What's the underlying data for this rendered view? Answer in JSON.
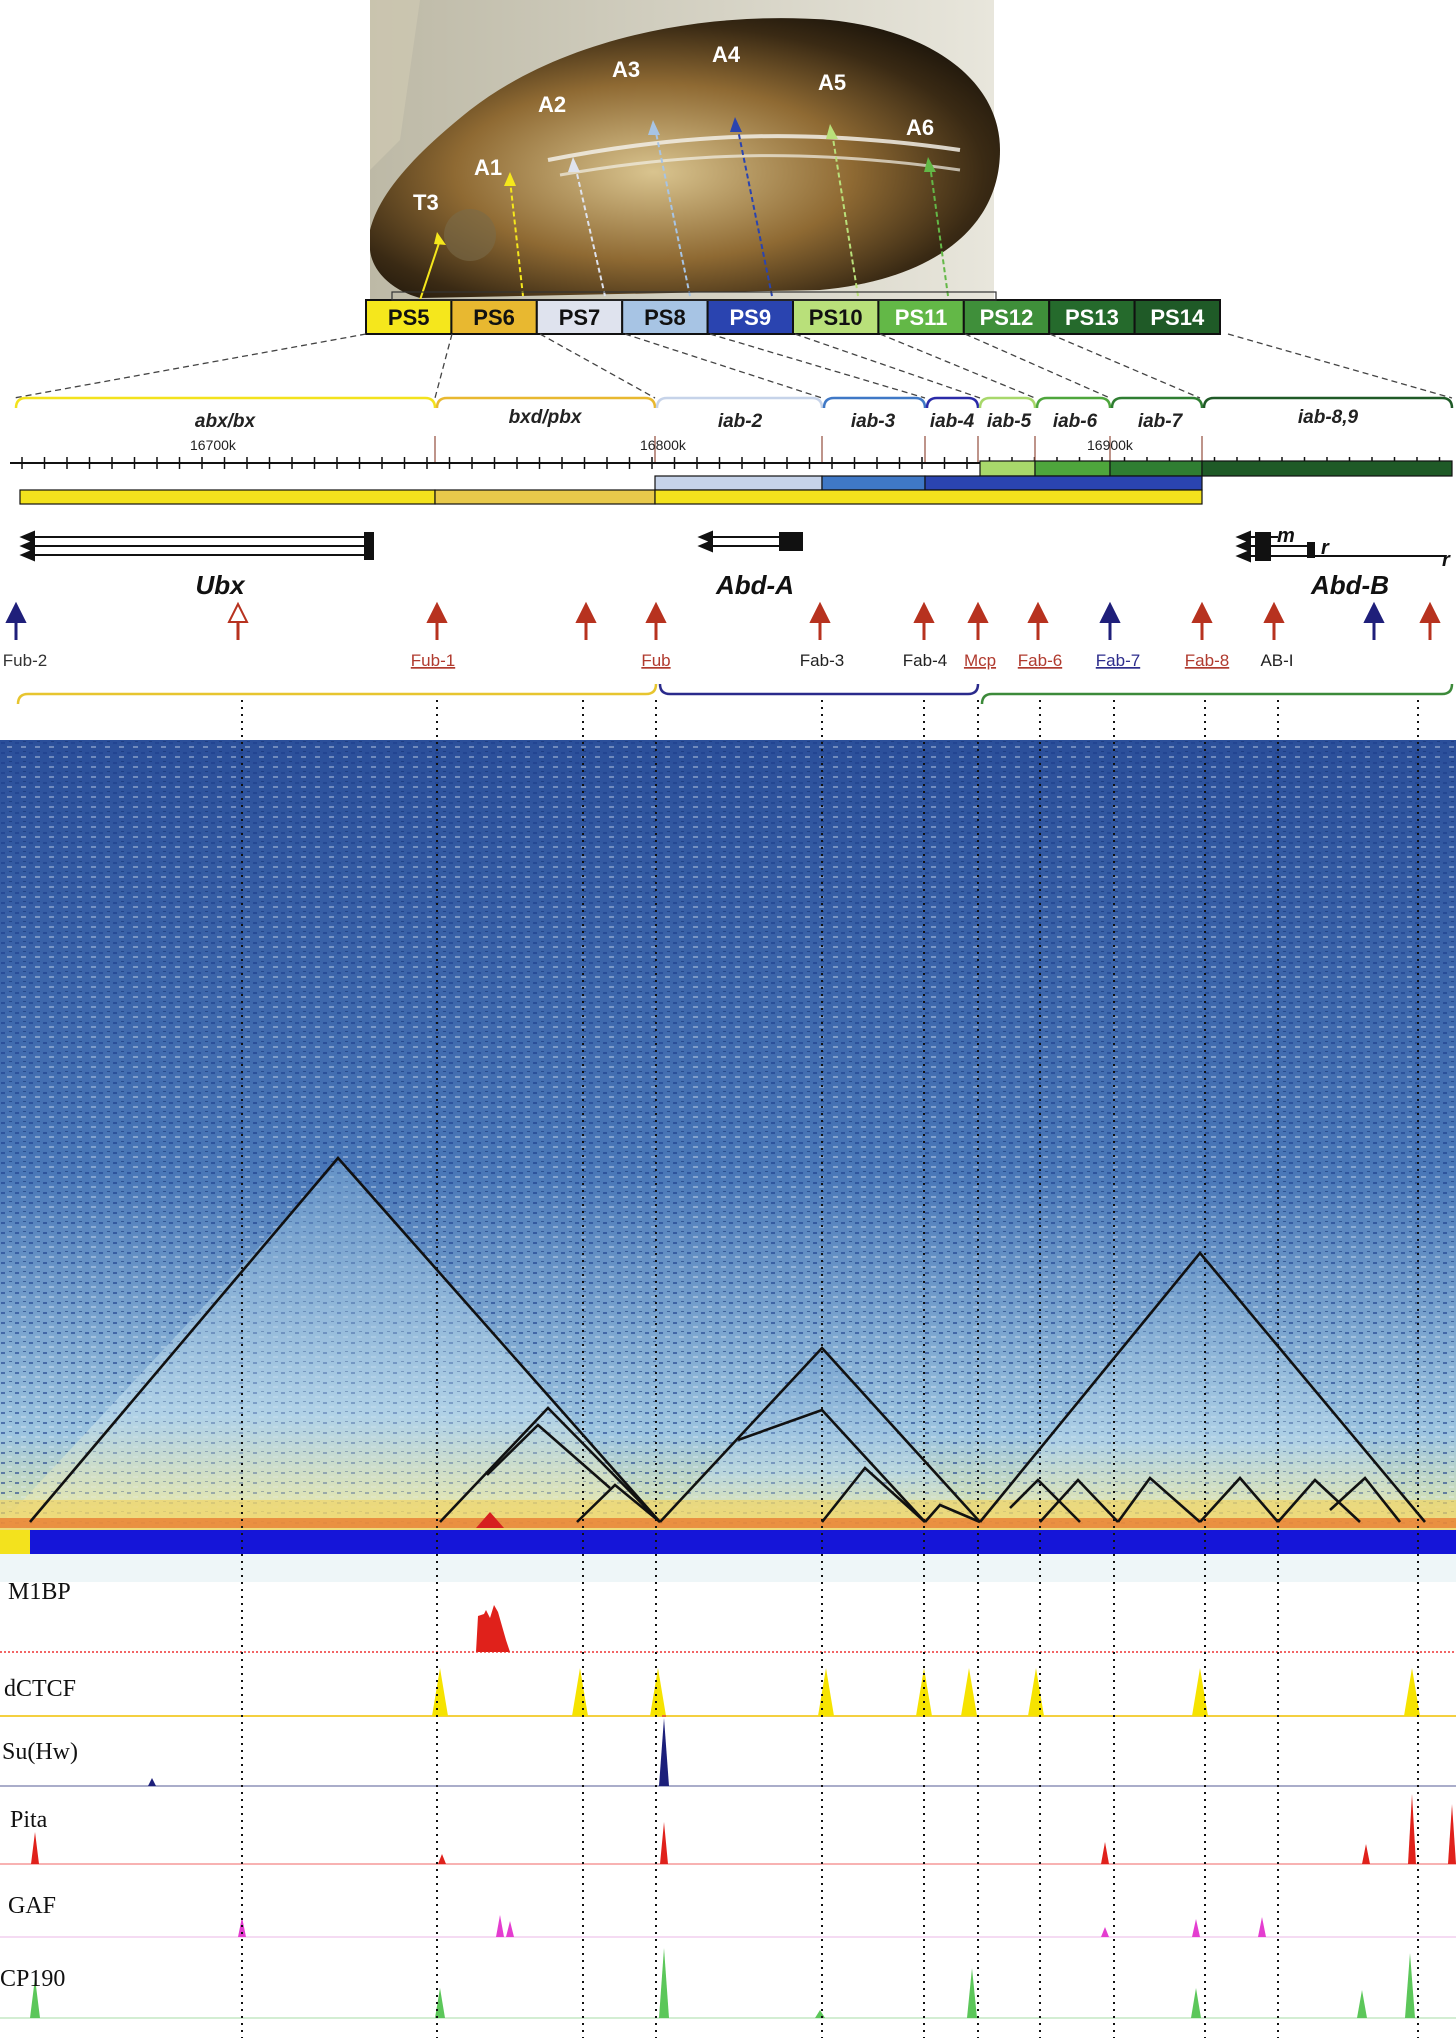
{
  "segments": [
    "T3",
    "A1",
    "A2",
    "A3",
    "A4",
    "A5",
    "A6"
  ],
  "parasegments": [
    {
      "label": "PS5",
      "color": "#f5e71c",
      "text": "#111111"
    },
    {
      "label": "PS6",
      "color": "#e8b830",
      "text": "#111111"
    },
    {
      "label": "PS7",
      "color": "#dfe3ee",
      "text": "#111111"
    },
    {
      "label": "PS8",
      "color": "#a7c4e4",
      "text": "#111111"
    },
    {
      "label": "PS9",
      "color": "#2a44b0",
      "text": "#ffffff"
    },
    {
      "label": "PS10",
      "color": "#b9e07a",
      "text": "#111111"
    },
    {
      "label": "PS11",
      "color": "#63b847",
      "text": "#ffffff"
    },
    {
      "label": "PS12",
      "color": "#3f8f3a",
      "text": "#ffffff"
    },
    {
      "label": "PS13",
      "color": "#256a2c",
      "text": "#ffffff"
    },
    {
      "label": "PS14",
      "color": "#1f5a27",
      "text": "#ffffff"
    }
  ],
  "domains": [
    "abx/bx",
    "bxd/pbx",
    "iab-2",
    "iab-3",
    "iab-4",
    "iab-5",
    "iab-6",
    "iab-7",
    "iab-8,9"
  ],
  "coords": [
    "16700k",
    "16800k",
    "16900k"
  ],
  "genes": [
    "Ubx",
    "Abd-A",
    "Abd-B"
  ],
  "gene_marks": {
    "m": "m",
    "r1": "r",
    "r2": "r"
  },
  "boundaries": [
    {
      "label": "Fub-2",
      "color": "#333333",
      "underline": false
    },
    {
      "label": "Fub-1",
      "color": "#b03a2e",
      "underline": true
    },
    {
      "label": "Fub",
      "color": "#b03a2e",
      "underline": true
    },
    {
      "label": "Fab-3",
      "color": "#222222",
      "underline": false
    },
    {
      "label": "Fab-4",
      "color": "#222222",
      "underline": false
    },
    {
      "label": "Mcp",
      "color": "#b03a2e",
      "underline": true
    },
    {
      "label": "Fab-6",
      "color": "#b03a2e",
      "underline": true
    },
    {
      "label": "Fab-7",
      "color": "#2c2c8c",
      "underline": true
    },
    {
      "label": "Fab-8",
      "color": "#b03a2e",
      "underline": true
    },
    {
      "label": "AB-I",
      "color": "#222222",
      "underline": false
    }
  ],
  "tracks": [
    {
      "label": "M1BP",
      "color": "#e0211b"
    },
    {
      "label": "dCTCF",
      "color": "#f6e300"
    },
    {
      "label": "Su(Hw)",
      "color": "#1c1f7a"
    },
    {
      "label": "Pita",
      "color": "#e0211b"
    },
    {
      "label": "GAF",
      "color": "#e43dd0"
    },
    {
      "label": "CP190",
      "color": "#5cc75a"
    }
  ],
  "colors": {
    "red_arrow": "#b7321f",
    "blue_arrow": "#1f1f7a",
    "bar_blue": "#1515d8",
    "bar_yellow": "#f3e21d"
  }
}
